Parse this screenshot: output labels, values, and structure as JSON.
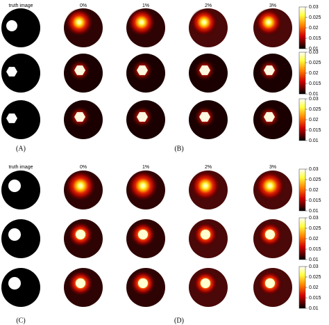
{
  "panels": [
    {
      "column_headers": [
        "truth image",
        "0%",
        "1%",
        "2%",
        "3%"
      ],
      "colorbars": [
        {
          "ticks": [
            "0.03",
            "0.025",
            "0.02",
            "0.015",
            "0.01"
          ]
        },
        {
          "ticks": [
            "0.03",
            "0.025",
            "0.02",
            "0.015",
            "0.01"
          ]
        },
        {
          "ticks": [
            "0.03",
            "0.025",
            "0.02",
            "0.015",
            "0.01"
          ]
        }
      ],
      "labels": [
        "(A)",
        "(B)"
      ]
    },
    {
      "column_headers": [
        "truth image",
        "0%",
        "1%",
        "2%",
        "3%"
      ],
      "colorbars": [
        {
          "ticks": [
            "0.03",
            "0.025",
            "0.02",
            "0.015",
            "0.01"
          ]
        },
        {
          "ticks": [
            "0.03",
            "0.025",
            "0.02",
            "0.015",
            "0.01"
          ]
        },
        {
          "ticks": [
            "0.03",
            "0.025",
            "0.02",
            "0.015",
            "0.01"
          ]
        }
      ],
      "labels": [
        "(C)",
        "(D)"
      ]
    }
  ]
}
